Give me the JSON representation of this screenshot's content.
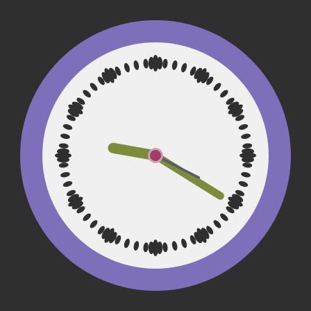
{
  "clock": {
    "time": {
      "hour": 9,
      "minute": 20,
      "second": 19.5
    },
    "colors": {
      "background": "#2f2f2f",
      "bezel": "#7e6fba",
      "face": "#f0f0f0",
      "ticks": "#2f2f2f",
      "hour_hand": "#7d8b3c",
      "minute_hand": "#7d8b3c",
      "second_hand": "#5a5a6a",
      "center_cap": "#a23c6a",
      "center_ring": "#c9a5b4"
    },
    "tick_style": {
      "minute_ticks": 60,
      "hour_ticks": 12
    }
  }
}
